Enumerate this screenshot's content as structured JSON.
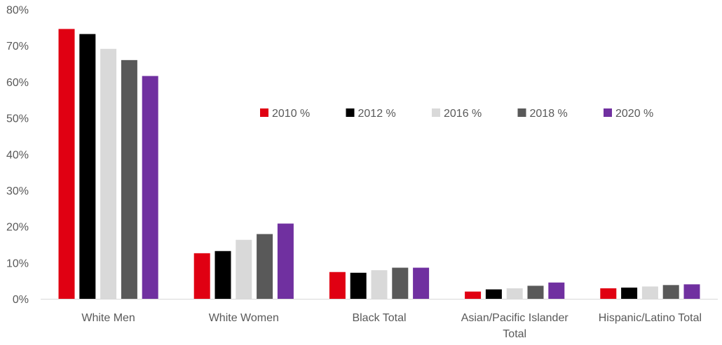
{
  "chart_data": {
    "type": "bar",
    "categories": [
      [
        "White Men"
      ],
      [
        "White Women"
      ],
      [
        "Black Total"
      ],
      [
        "Asian/Pacific Islander",
        "Total"
      ],
      [
        "Hispanic/Latino Total"
      ]
    ],
    "series": [
      {
        "name": "2010 %",
        "color": "#e00012",
        "values": [
          74.7,
          12.7,
          7.5,
          2.1,
          3.0
        ]
      },
      {
        "name": "2012 %",
        "color": "#000000",
        "values": [
          73.3,
          13.3,
          7.3,
          2.7,
          3.2
        ]
      },
      {
        "name": "2016 %",
        "color": "#d9d9d9",
        "values": [
          69.2,
          16.4,
          8.0,
          3.0,
          3.5
        ]
      },
      {
        "name": "2018 %",
        "color": "#595959",
        "values": [
          66.1,
          18.0,
          8.7,
          3.7,
          3.9
        ]
      },
      {
        "name": "2020 %",
        "color": "#7030a0",
        "values": [
          61.7,
          20.9,
          8.7,
          4.6,
          4.1
        ]
      }
    ],
    "yticks": [
      "0%",
      "10%",
      "20%",
      "30%",
      "40%",
      "50%",
      "60%",
      "70%",
      "80%"
    ],
    "ylim": [
      0,
      80
    ],
    "legend_position": "inside-center-right",
    "grid": false
  }
}
